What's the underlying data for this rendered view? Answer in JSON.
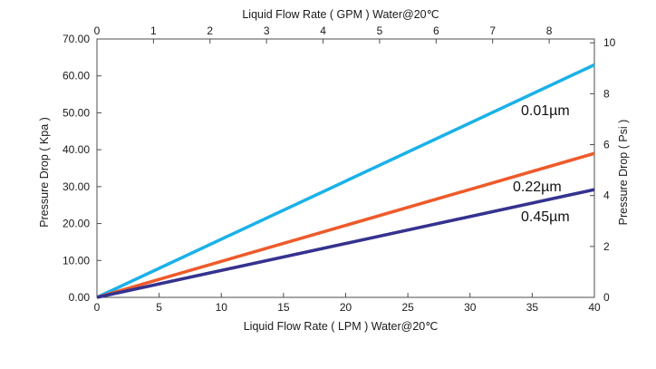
{
  "chart_data": {
    "type": "line",
    "x_bottom": {
      "label": "Liquid Flow Rate ( LPM ) Water@20℃",
      "range": [
        0,
        40
      ],
      "ticks": [
        "0",
        "5",
        "10",
        "15",
        "20",
        "25",
        "30",
        "35",
        "40"
      ]
    },
    "x_top": {
      "label": "Liquid Flow Rate ( GPM ) Water@20℃",
      "range": [
        0,
        8.8
      ],
      "ticks": [
        "0",
        "1",
        "2",
        "3",
        "4",
        "5",
        "6",
        "7",
        "8"
      ]
    },
    "y_left": {
      "label": "Pressure Drop ( Kpa )",
      "range": [
        0,
        70
      ],
      "ticks": [
        "0.00",
        "10.00",
        "20.00",
        "30.00",
        "40.00",
        "50.00",
        "60.00",
        "70.00"
      ]
    },
    "y_right": {
      "label": "Pressure Drop ( Psi )",
      "range": [
        0,
        10.15
      ],
      "ticks": [
        "0",
        "2",
        "4",
        "6",
        "8",
        "10"
      ]
    },
    "series": [
      {
        "name": "0.01µm",
        "color": "#1ab1e8",
        "x": [
          0,
          40
        ],
        "y": [
          0,
          63.0
        ]
      },
      {
        "name": "0.22µm",
        "color": "#ee5a2a",
        "x": [
          0,
          40
        ],
        "y": [
          0,
          39.0
        ]
      },
      {
        "name": "0.45µm",
        "color": "#35328f",
        "x": [
          0,
          40
        ],
        "y": [
          0,
          29.2
        ]
      }
    ],
    "grid": false,
    "legend": "inline labels at right end of lines"
  }
}
